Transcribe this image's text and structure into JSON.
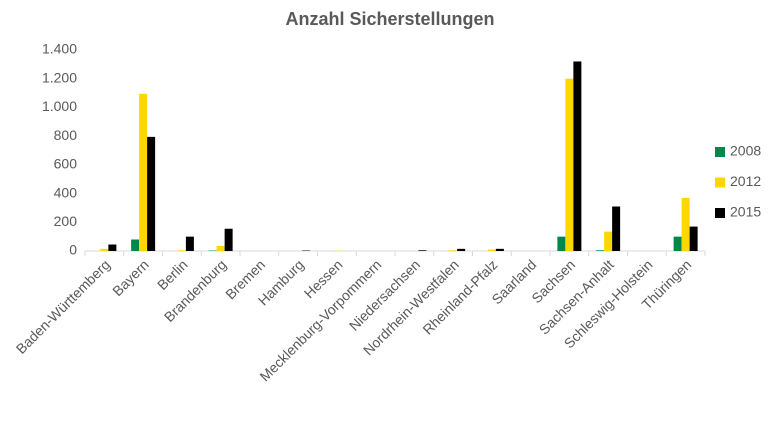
{
  "chart_data": {
    "type": "bar",
    "title": "Anzahl Sicherstellungen",
    "categories": [
      "Baden-Württemberg",
      "Bayern",
      "Berlin",
      "Brandenburg",
      "Bremen",
      "Hamburg",
      "Hessen",
      "Mecklenburg-Vorpommern",
      "Niedersachsen",
      "Nordrhein-Westfalen",
      "Rheinland-Pfalz",
      "Saarland",
      "Sachsen",
      "Sachsen-Anhalt",
      "Schleswig-Holstein",
      "Thüringen"
    ],
    "series": [
      {
        "name": "2008",
        "color": "#00884a",
        "values": [
          0,
          80,
          0,
          3,
          0,
          0,
          0,
          0,
          0,
          0,
          0,
          0,
          100,
          5,
          0,
          100
        ]
      },
      {
        "name": "2012",
        "color": "#ffd700",
        "values": [
          15,
          1095,
          5,
          35,
          0,
          0,
          2,
          0,
          0,
          5,
          10,
          0,
          1200,
          135,
          0,
          370
        ]
      },
      {
        "name": "2015",
        "color": "#000000",
        "values": [
          45,
          795,
          100,
          155,
          0,
          3,
          0,
          0,
          5,
          15,
          15,
          0,
          1320,
          310,
          0,
          170
        ]
      }
    ],
    "ylim": [
      0,
      1400
    ],
    "yticks": [
      0,
      200,
      400,
      600,
      800,
      {
        "value": 1000,
        "label": "1.000"
      },
      {
        "value": 1200,
        "label": "1.200"
      },
      {
        "value": 1400,
        "label": "1.400"
      }
    ],
    "grid": false,
    "legend": "right"
  }
}
